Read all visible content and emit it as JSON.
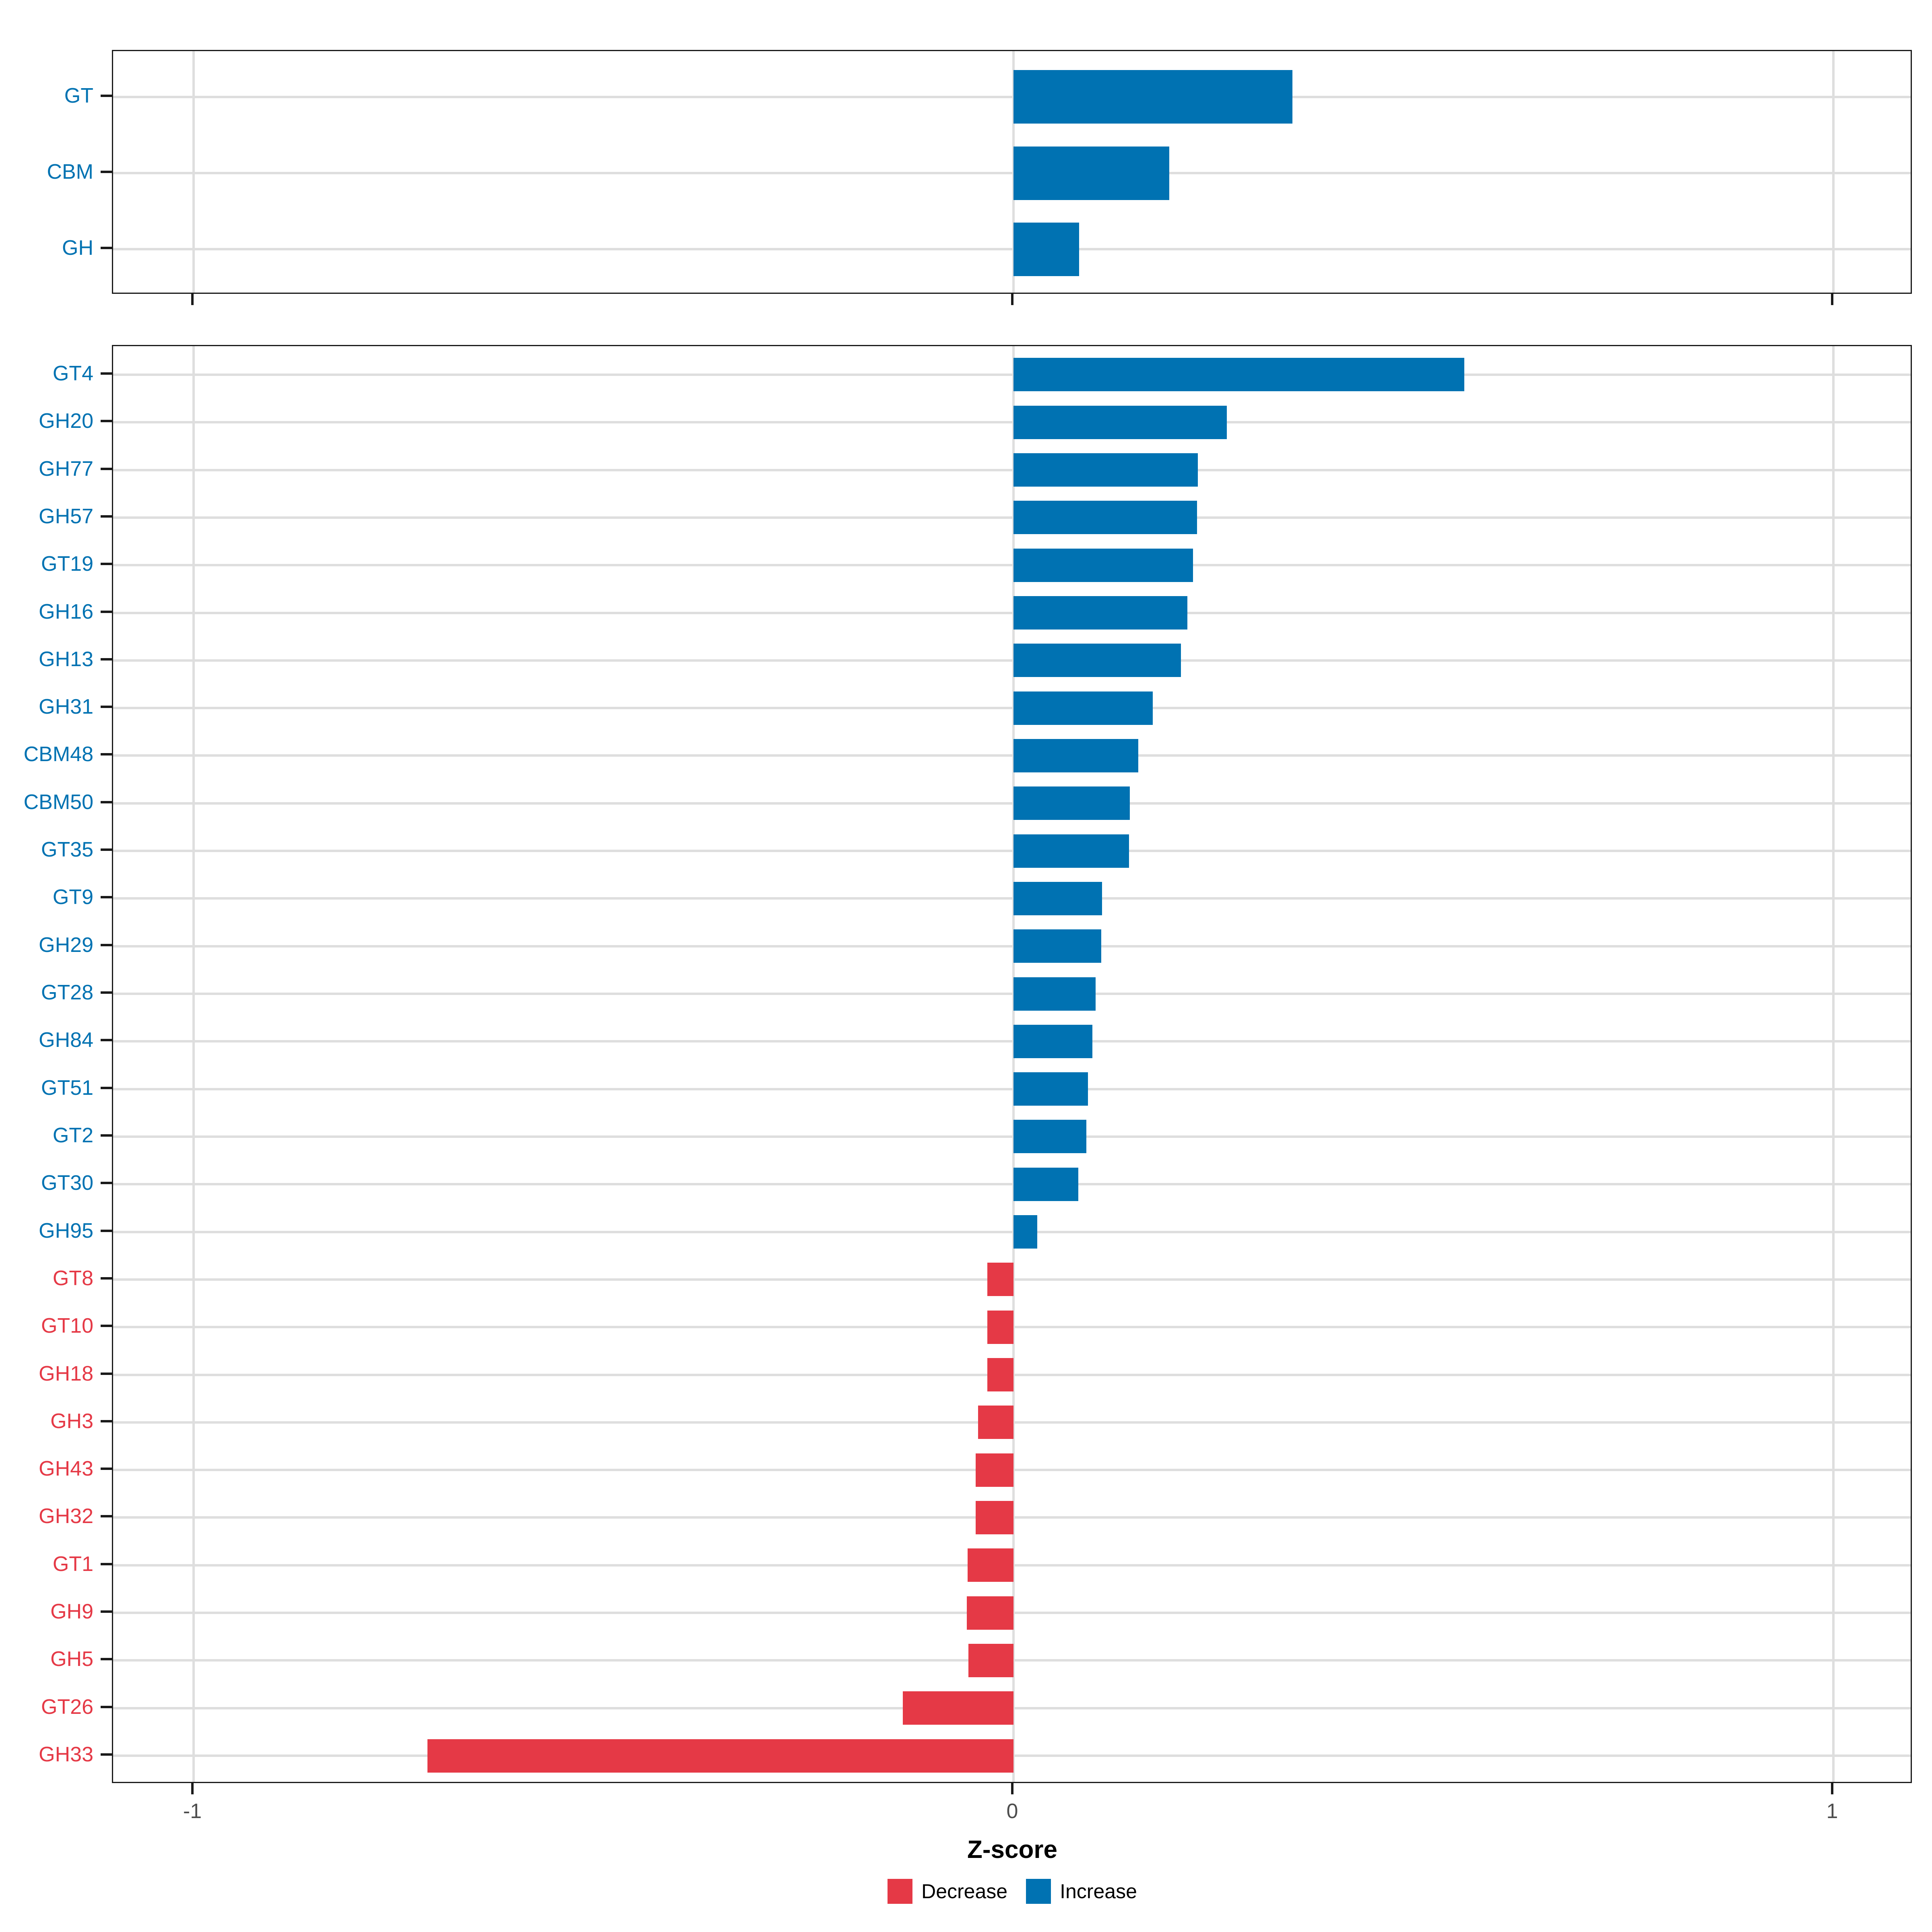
{
  "chart_data": {
    "type": "bar",
    "orientation": "horizontal",
    "title": "",
    "xlabel": "Z-score",
    "ylabel": "",
    "xlim": [
      -1.1,
      1.1
    ],
    "x_ticks": [
      -1,
      0,
      1
    ],
    "x_tick_labels": [
      "-1",
      "0",
      "1"
    ],
    "grid": "major-only",
    "legend_position": "bottom",
    "legend": [
      {
        "label": "Decrease",
        "direction": "decrease",
        "color": "#E53946"
      },
      {
        "label": "Increase",
        "direction": "increase",
        "color": "#0072B2"
      }
    ],
    "colors": {
      "increase": "#0072B2",
      "decrease": "#E53946",
      "gridline": "#DEDEDE",
      "panel_border": "#1A1A1A",
      "tick_label_text": "#4D4D4D",
      "axis_title_text": "#000000"
    },
    "panels": [
      {
        "name": "class-summary",
        "categories": [
          "GT",
          "CBM",
          "GH"
        ],
        "values": [
          0.34,
          0.19,
          0.08
        ]
      },
      {
        "name": "family-detail",
        "categories": [
          "GT4",
          "GH20",
          "GH77",
          "GH57",
          "GT19",
          "GH16",
          "GH13",
          "GH31",
          "CBM48",
          "CBM50",
          "GT35",
          "GT9",
          "GH29",
          "GT28",
          "GH84",
          "GT51",
          "GT2",
          "GT30",
          "GH95",
          "GT8",
          "GT10",
          "GH18",
          "GH3",
          "GH43",
          "GH32",
          "GT1",
          "GH9",
          "GH5",
          "GT26",
          "GH33"
        ],
        "values": [
          0.55,
          0.26,
          0.225,
          0.224,
          0.219,
          0.212,
          0.204,
          0.17,
          0.152,
          0.142,
          0.141,
          0.108,
          0.107,
          0.1,
          0.096,
          0.091,
          0.089,
          0.079,
          0.029,
          -0.032,
          -0.032,
          -0.032,
          -0.043,
          -0.046,
          -0.046,
          -0.056,
          -0.057,
          -0.055,
          -0.135,
          -0.715
        ]
      }
    ]
  }
}
